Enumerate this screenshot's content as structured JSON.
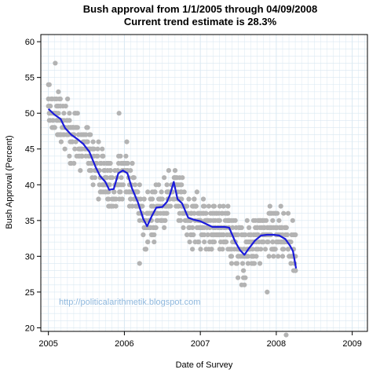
{
  "chart_data": {
    "type": "scatter",
    "title": "Bush approval from 1/1/2005 through 04/09/2008",
    "subtitle": "Current trend estimate is 28.3%",
    "xlabel": "Date of Survey",
    "ylabel": "Bush Approval (Percent)",
    "xlim": [
      2004.9,
      2009.2
    ],
    "ylim": [
      19.5,
      61
    ],
    "x_ticks": [
      "2005",
      "2006",
      "2007",
      "2008",
      "2009"
    ],
    "y_ticks": [
      "20",
      "25",
      "30",
      "35",
      "40",
      "45",
      "50",
      "55",
      "60"
    ],
    "grid": true,
    "annotation": "http://politicalarithmetik.blogspot.com",
    "colors": {
      "points": "#b3b3b3",
      "trend": "#1a1adb",
      "grid": "#d9e8f2",
      "annotation": "#8fb8de"
    },
    "series": [
      {
        "kind": "trend",
        "points": [
          [
            2005.0,
            50.6
          ],
          [
            2005.08,
            49.8
          ],
          [
            2005.16,
            49.2
          ],
          [
            2005.22,
            47.9
          ],
          [
            2005.3,
            47.0
          ],
          [
            2005.38,
            46.4
          ],
          [
            2005.46,
            45.7
          ],
          [
            2005.54,
            44.6
          ],
          [
            2005.62,
            42.5
          ],
          [
            2005.68,
            41.2
          ],
          [
            2005.75,
            40.4
          ],
          [
            2005.8,
            39.3
          ],
          [
            2005.86,
            39.4
          ],
          [
            2005.92,
            41.6
          ],
          [
            2005.98,
            42.0
          ],
          [
            2006.04,
            41.6
          ],
          [
            2006.1,
            39.5
          ],
          [
            2006.18,
            37.5
          ],
          [
            2006.25,
            35.2
          ],
          [
            2006.3,
            34.2
          ],
          [
            2006.36,
            35.6
          ],
          [
            2006.42,
            36.8
          ],
          [
            2006.5,
            36.9
          ],
          [
            2006.56,
            37.6
          ],
          [
            2006.6,
            38.6
          ],
          [
            2006.65,
            40.4
          ],
          [
            2006.7,
            38.0
          ],
          [
            2006.76,
            37.4
          ],
          [
            2006.84,
            35.4
          ],
          [
            2006.92,
            35.1
          ],
          [
            2007.0,
            34.9
          ],
          [
            2007.08,
            34.5
          ],
          [
            2007.16,
            34.1
          ],
          [
            2007.24,
            34.1
          ],
          [
            2007.32,
            34.1
          ],
          [
            2007.38,
            34.0
          ],
          [
            2007.46,
            32.0
          ],
          [
            2007.52,
            30.9
          ],
          [
            2007.58,
            30.2
          ],
          [
            2007.64,
            31.1
          ],
          [
            2007.72,
            32.2
          ],
          [
            2007.8,
            32.9
          ],
          [
            2007.88,
            33.0
          ],
          [
            2007.96,
            33.0
          ],
          [
            2008.04,
            32.9
          ],
          [
            2008.12,
            32.4
          ],
          [
            2008.18,
            31.5
          ],
          [
            2008.22,
            30.7
          ],
          [
            2008.26,
            28.3
          ]
        ]
      }
    ]
  }
}
